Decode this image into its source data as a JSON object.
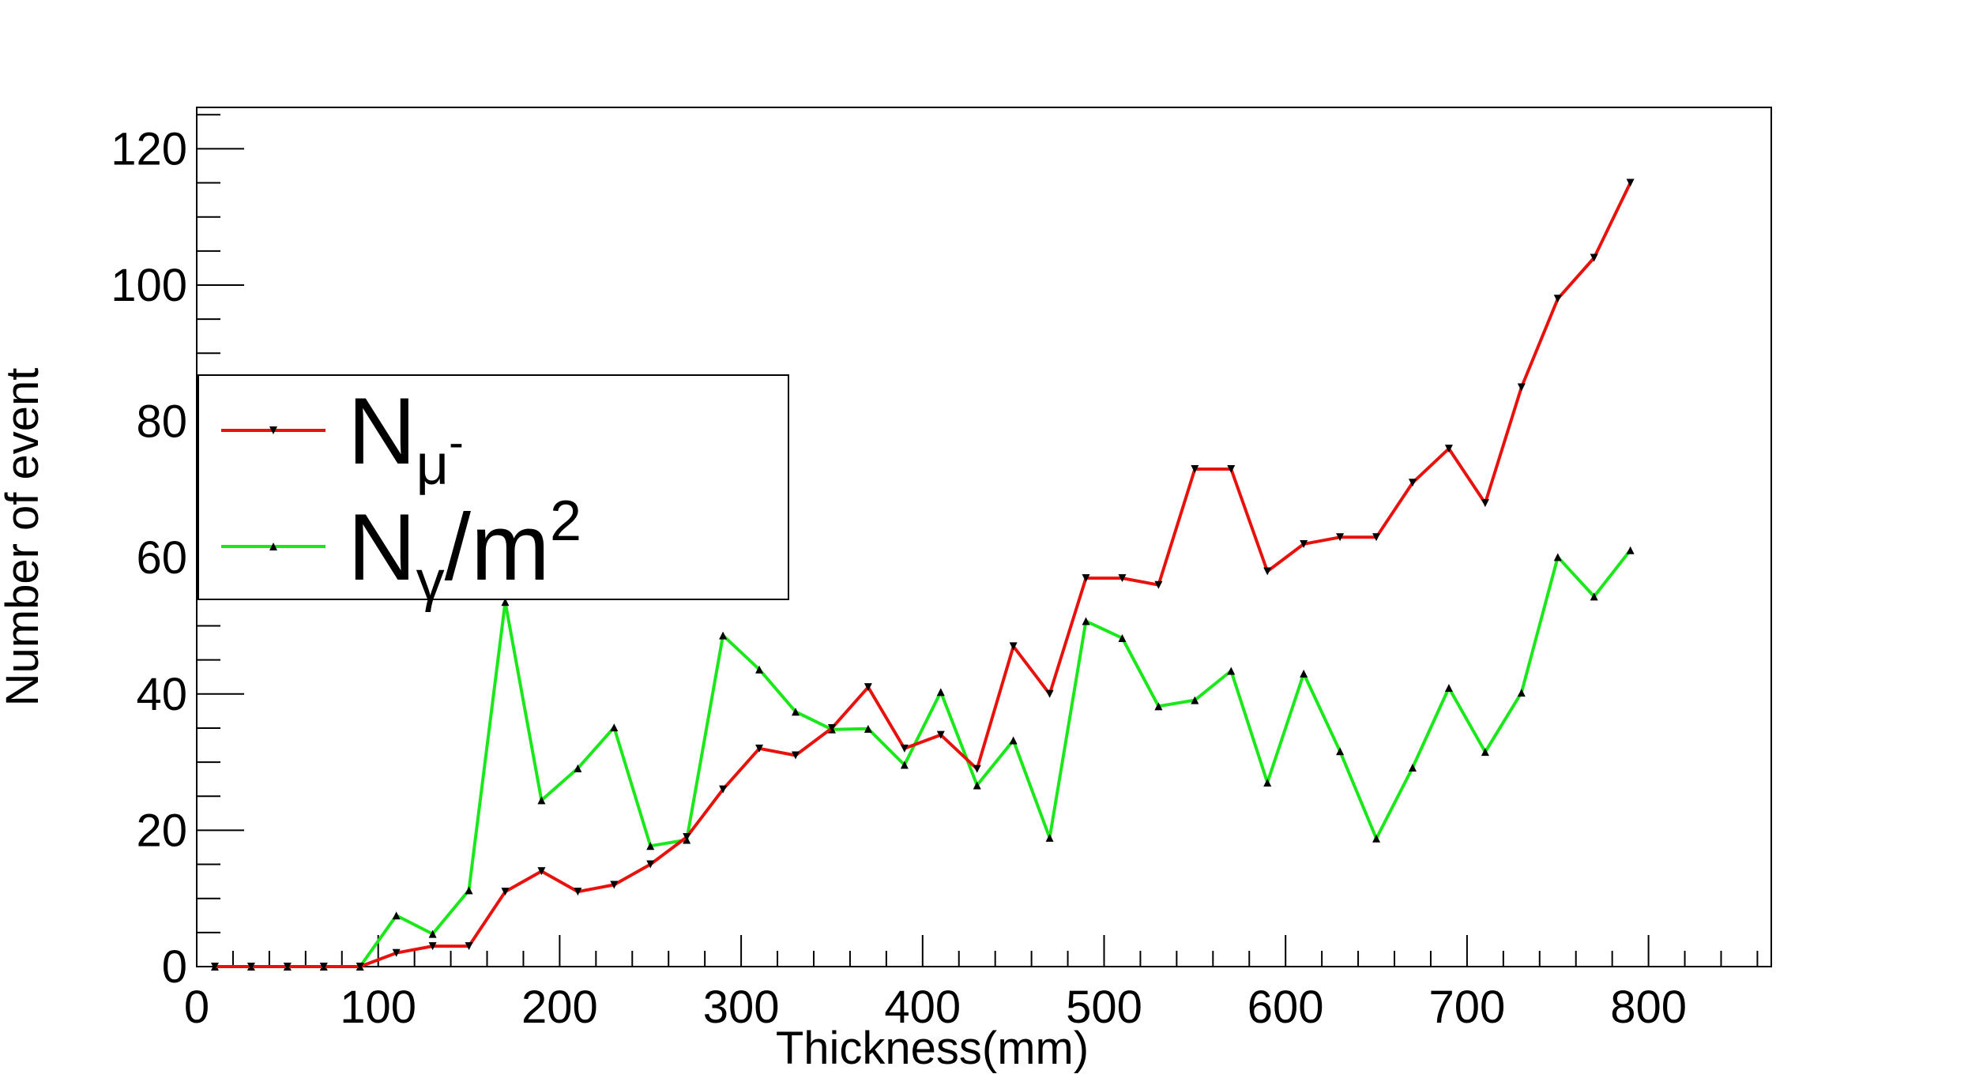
{
  "chart_data": {
    "type": "line",
    "title": "",
    "xlabel": "Thickness(mm)",
    "ylabel": "Number of event",
    "xlim": [
      0,
      870
    ],
    "ylim": [
      0,
      125
    ],
    "xticks": [
      "0",
      "100",
      "200",
      "300",
      "400",
      "500",
      "600",
      "700",
      "800"
    ],
    "yticks": [
      "0",
      "20",
      "40",
      "60",
      "80",
      "100",
      "120"
    ],
    "grid": false,
    "legend_position": "left",
    "x": [
      10,
      30,
      50,
      70,
      90,
      110,
      130,
      150,
      170,
      190,
      210,
      230,
      250,
      270,
      290,
      310,
      330,
      350,
      370,
      390,
      410,
      430,
      450,
      470,
      490,
      510,
      530,
      550,
      570,
      590,
      610,
      630,
      650,
      670,
      690,
      710,
      730,
      750,
      770,
      790
    ],
    "series": [
      {
        "name": "N_mu-",
        "label_main": "N",
        "label_sub": "μ",
        "label_sup": "-",
        "label_tail": "",
        "color": "#e8120c",
        "marker": "triangle-down",
        "values": [
          0,
          0,
          0,
          0,
          0,
          2,
          3,
          3,
          11,
          14,
          11,
          12,
          15,
          19,
          26,
          32,
          31,
          35,
          41,
          32,
          34,
          29,
          47,
          40,
          57,
          57,
          56,
          73,
          73,
          58,
          62,
          63,
          63,
          71,
          76,
          68,
          85,
          98,
          104,
          115
        ]
      },
      {
        "name": "N_gamma/m^2",
        "label_main": "N",
        "label_sub": "γ",
        "label_sup": "2",
        "label_tail": "/m",
        "color": "#1be81b",
        "marker": "triangle-up",
        "values": [
          0,
          0,
          0,
          0,
          0,
          7.5,
          4.8,
          11.2,
          53.5,
          24.4,
          29.1,
          35.1,
          17.7,
          18.6,
          48.6,
          43.6,
          37.4,
          34.8,
          34.9,
          29.6,
          40.3,
          26.6,
          33.2,
          18.9,
          50.7,
          48.2,
          38.2,
          39.1,
          43.4,
          27.0,
          43.0,
          31.6,
          18.8,
          29.2,
          40.9,
          31.5,
          40.2,
          60.1,
          54.3,
          61.1
        ]
      }
    ]
  }
}
